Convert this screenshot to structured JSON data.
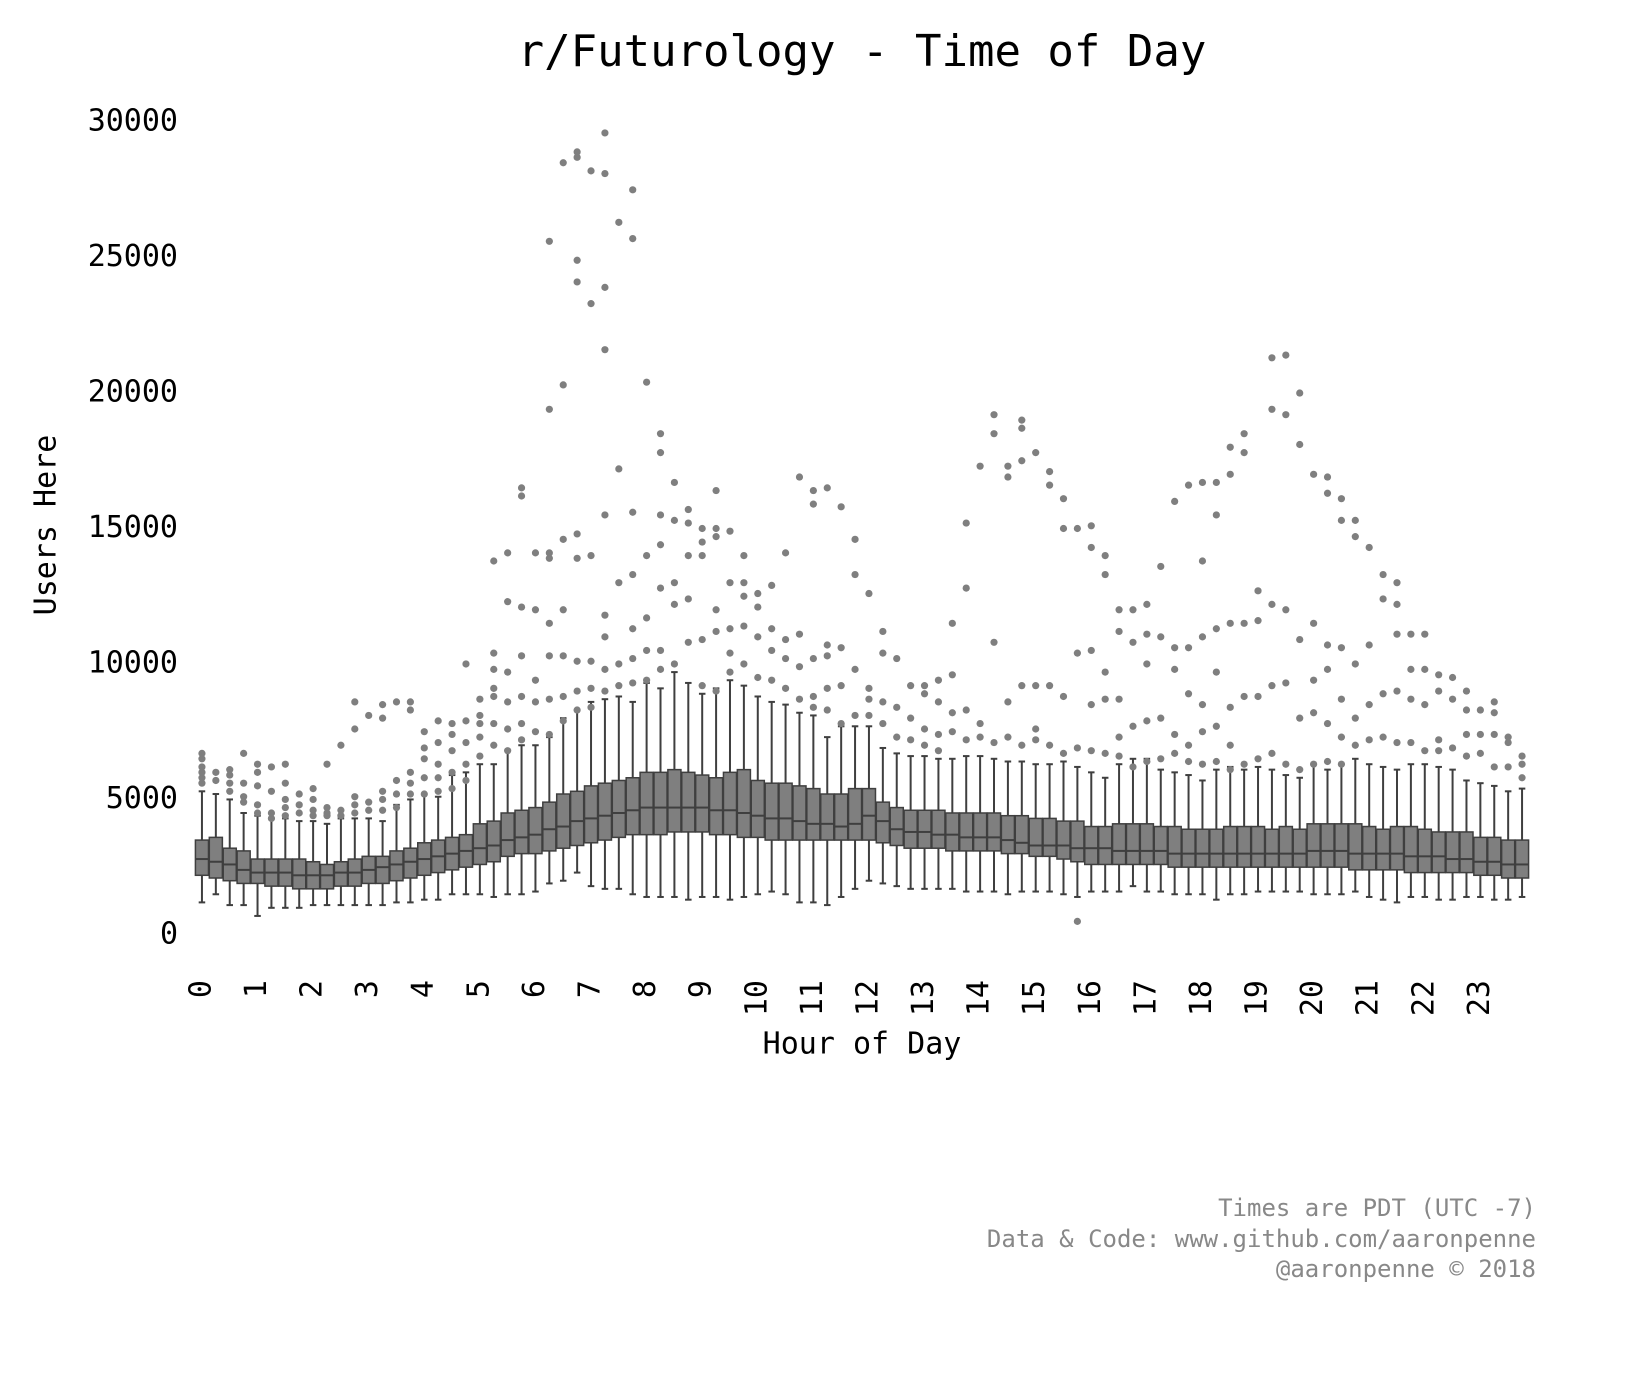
{
  "chart_data": {
    "type": "box",
    "title": "r/Futurology - Time of Day",
    "x_label": "Hour of Day",
    "y_label": "Users Here",
    "footer": [
      "Times are PDT (UTC -7)",
      "Data & Code: www.github.com/aaronpenne",
      "@aaronpenne © 2018"
    ],
    "categories": [
      "0",
      null,
      null,
      null,
      "1",
      null,
      null,
      null,
      "2",
      null,
      null,
      null,
      "3",
      null,
      null,
      null,
      "4",
      null,
      null,
      null,
      "5",
      null,
      null,
      null,
      "6",
      null,
      null,
      null,
      "7",
      null,
      null,
      null,
      "8",
      null,
      null,
      null,
      "9",
      null,
      null,
      null,
      "10",
      null,
      null,
      null,
      "11",
      null,
      null,
      null,
      "12",
      null,
      null,
      null,
      "13",
      null,
      null,
      null,
      "14",
      null,
      null,
      null,
      "15",
      null,
      null,
      null,
      "16",
      null,
      null,
      null,
      "17",
      null,
      null,
      null,
      "18",
      null,
      null,
      null,
      "19",
      null,
      null,
      null,
      "20",
      null,
      null,
      null,
      "21",
      null,
      null,
      null,
      "22",
      null,
      null,
      null,
      "23",
      null,
      null,
      null
    ],
    "whisker_low": [
      1200,
      1500,
      1100,
      1100,
      700,
      1000,
      1000,
      1000,
      1100,
      1100,
      1100,
      1100,
      1100,
      1100,
      1200,
      1200,
      1300,
      1300,
      1500,
      1500,
      1500,
      1400,
      1500,
      1500,
      1600,
      1900,
      2000,
      2300,
      1800,
      1700,
      1700,
      1500,
      1400,
      1400,
      1400,
      1300,
      1400,
      1400,
      1300,
      1400,
      1500,
      1600,
      1500,
      1200,
      1200,
      1100,
      1400,
      1700,
      2000,
      1900,
      1800,
      1700,
      1700,
      1700,
      1700,
      1600,
      1600,
      1600,
      1500,
      1600,
      1600,
      1600,
      1500,
      1400,
      1600,
      1600,
      1600,
      1800,
      1600,
      1600,
      1500,
      1500,
      1500,
      1300,
      1500,
      1500,
      1600,
      1600,
      1600,
      1600,
      1500,
      1500,
      1500,
      1600,
      1400,
      1300,
      1200,
      1400,
      1400,
      1300,
      1300,
      1400,
      1400,
      1300,
      1300,
      1400
    ],
    "q1": [
      2200,
      2100,
      2000,
      1900,
      1900,
      1800,
      1800,
      1700,
      1700,
      1700,
      1800,
      1800,
      1900,
      1900,
      2000,
      2100,
      2200,
      2300,
      2400,
      2500,
      2600,
      2700,
      2900,
      3000,
      3000,
      3100,
      3200,
      3300,
      3400,
      3500,
      3600,
      3700,
      3700,
      3700,
      3800,
      3800,
      3800,
      3700,
      3700,
      3600,
      3600,
      3500,
      3500,
      3500,
      3500,
      3500,
      3500,
      3500,
      3500,
      3400,
      3300,
      3200,
      3200,
      3200,
      3100,
      3100,
      3100,
      3100,
      3000,
      3000,
      2900,
      2900,
      2800,
      2700,
      2600,
      2600,
      2600,
      2600,
      2600,
      2600,
      2500,
      2500,
      2500,
      2500,
      2500,
      2500,
      2500,
      2500,
      2500,
      2500,
      2500,
      2500,
      2500,
      2400,
      2400,
      2400,
      2400,
      2300,
      2300,
      2300,
      2300,
      2300,
      2200,
      2200,
      2100,
      2100
    ],
    "median": [
      2800,
      2700,
      2600,
      2400,
      2300,
      2300,
      2300,
      2200,
      2200,
      2200,
      2300,
      2300,
      2400,
      2500,
      2600,
      2700,
      2800,
      2900,
      3000,
      3100,
      3200,
      3300,
      3500,
      3600,
      3700,
      3900,
      4000,
      4200,
      4300,
      4400,
      4500,
      4600,
      4700,
      4700,
      4700,
      4700,
      4700,
      4600,
      4600,
      4500,
      4400,
      4300,
      4300,
      4200,
      4100,
      4100,
      4000,
      4100,
      4400,
      4200,
      3900,
      3800,
      3800,
      3700,
      3700,
      3600,
      3600,
      3600,
      3500,
      3400,
      3300,
      3300,
      3300,
      3200,
      3200,
      3200,
      3100,
      3100,
      3100,
      3100,
      3000,
      3000,
      3000,
      3000,
      3000,
      3000,
      3000,
      3000,
      3000,
      3000,
      3100,
      3100,
      3100,
      3000,
      3000,
      3000,
      3000,
      2900,
      2900,
      2900,
      2800,
      2800,
      2700,
      2700,
      2600,
      2600
    ],
    "q3": [
      3500,
      3600,
      3200,
      3100,
      2800,
      2800,
      2800,
      2800,
      2700,
      2600,
      2700,
      2800,
      2900,
      2900,
      3100,
      3200,
      3400,
      3500,
      3600,
      3700,
      4100,
      4200,
      4500,
      4600,
      4700,
      4900,
      5200,
      5300,
      5500,
      5600,
      5700,
      5800,
      6000,
      6000,
      6100,
      6000,
      5900,
      5800,
      6000,
      6100,
      5700,
      5600,
      5600,
      5500,
      5400,
      5200,
      5200,
      5400,
      5400,
      4900,
      4700,
      4600,
      4600,
      4600,
      4500,
      4500,
      4500,
      4500,
      4400,
      4400,
      4300,
      4300,
      4200,
      4200,
      4000,
      4000,
      4100,
      4100,
      4100,
      4000,
      4000,
      3900,
      3900,
      3900,
      4000,
      4000,
      4000,
      3900,
      4000,
      3900,
      4100,
      4100,
      4100,
      4100,
      4000,
      3900,
      4000,
      4000,
      3900,
      3800,
      3800,
      3800,
      3600,
      3600,
      3500,
      3500
    ],
    "whisker_high": [
      5300,
      5200,
      5000,
      4500,
      4400,
      4300,
      4300,
      4200,
      4200,
      4100,
      4300,
      4300,
      4300,
      4200,
      4800,
      5000,
      5200,
      5100,
      5900,
      6000,
      6300,
      6300,
      6800,
      7000,
      7000,
      7300,
      8000,
      8300,
      8600,
      8700,
      8800,
      8600,
      9300,
      9100,
      9700,
      9300,
      8900,
      9100,
      9400,
      9200,
      8800,
      8600,
      8500,
      8200,
      8100,
      7300,
      7700,
      7700,
      7700,
      6900,
      6700,
      6600,
      6600,
      6500,
      6500,
      6600,
      6600,
      6500,
      6400,
      6400,
      6300,
      6300,
      6400,
      6200,
      6000,
      5800,
      6300,
      6500,
      6500,
      6100,
      6000,
      5900,
      5700,
      6100,
      6200,
      6100,
      6200,
      6100,
      5900,
      5800,
      6300,
      6100,
      6300,
      6500,
      6300,
      6200,
      6100,
      6300,
      6300,
      6200,
      6100,
      5700,
      5600,
      5500,
      5300,
      5400
    ],
    "outliers": [
      [
        5600,
        5800,
        6000,
        6200,
        6500,
        6700
      ],
      [
        5700,
        6000
      ],
      [
        5300,
        5600,
        5900,
        6100
      ],
      [
        4900,
        5100,
        5600,
        6700
      ],
      [
        4500,
        4800,
        5500,
        6000,
        6300
      ],
      [
        4300,
        4500,
        5300,
        6200
      ],
      [
        4400,
        4700,
        5000,
        5600,
        6300
      ],
      [
        4500,
        4800,
        5200
      ],
      [
        4400,
        4600,
        5000,
        5400
      ],
      [
        4400,
        4500,
        4700,
        6300
      ],
      [
        4400,
        4600,
        7000
      ],
      [
        4500,
        4800,
        5100,
        7600,
        8600
      ],
      [
        4600,
        4900,
        8100
      ],
      [
        4600,
        5000,
        5300,
        8000,
        8500
      ],
      [
        4700,
        5200,
        5700,
        8600
      ],
      [
        5200,
        5600,
        6000,
        8300,
        8600
      ],
      [
        5200,
        5800,
        6500,
        6900,
        7500
      ],
      [
        5300,
        5800,
        6300,
        7100,
        7900
      ],
      [
        5400,
        6000,
        6800,
        7400,
        7800
      ],
      [
        5700,
        6300,
        7100,
        7900,
        10000
      ],
      [
        6600,
        7300,
        7800,
        8100,
        8700
      ],
      [
        7000,
        7800,
        8800,
        9100,
        9800,
        10400,
        13800
      ],
      [
        6800,
        7600,
        8600,
        9700,
        12300,
        14100
      ],
      [
        7200,
        7800,
        8800,
        10300,
        12100,
        16200,
        16500
      ],
      [
        7500,
        8600,
        9400,
        12000,
        14100
      ],
      [
        7400,
        8700,
        10300,
        11500,
        13900,
        14100,
        19400,
        25600
      ],
      [
        7900,
        8800,
        10300,
        12000,
        14600,
        20300,
        28500
      ],
      [
        8300,
        9000,
        10100,
        13900,
        14800,
        24100,
        24900,
        28700,
        28900
      ],
      [
        8400,
        9100,
        10100,
        14000,
        23300,
        28200
      ],
      [
        9000,
        9800,
        11000,
        11800,
        15500,
        21600,
        23900,
        28100,
        29600
      ],
      [
        9200,
        10000,
        13000,
        17200,
        26300
      ],
      [
        9300,
        10200,
        11300,
        13300,
        15600,
        25700,
        27500
      ],
      [
        9400,
        10500,
        11700,
        14000,
        20400
      ],
      [
        9800,
        10500,
        12800,
        14400,
        15500,
        17800,
        18500
      ],
      [
        10000,
        12200,
        13000,
        15300,
        16700
      ],
      [
        10800,
        12400,
        14000,
        15200,
        15700
      ],
      [
        9200,
        10900,
        14000,
        14500,
        15000
      ],
      [
        9000,
        11200,
        12000,
        14700,
        15000,
        16400
      ],
      [
        9700,
        10400,
        11300,
        13000,
        14900
      ],
      [
        10000,
        11400,
        12500,
        13000,
        14000
      ],
      [
        9500,
        11000,
        12100,
        12600
      ],
      [
        9400,
        10500,
        11300,
        12900
      ],
      [
        9100,
        10200,
        10900,
        14100
      ],
      [
        8700,
        9900,
        11100,
        16900
      ],
      [
        8400,
        8800,
        10200,
        15900,
        16400
      ],
      [
        8300,
        9100,
        10300,
        10700,
        16500
      ],
      [
        7800,
        9200,
        10600,
        15800
      ],
      [
        8100,
        9800,
        13300,
        14600
      ],
      [
        8100,
        8700,
        9100,
        12600
      ],
      [
        7800,
        8600,
        10400,
        11200
      ],
      [
        7300,
        8400,
        10200
      ],
      [
        7200,
        8000,
        9200
      ],
      [
        7000,
        7600,
        8900,
        9200
      ],
      [
        6800,
        7400,
        8600,
        9400
      ],
      [
        7500,
        8200,
        9600,
        11500
      ],
      [
        7200,
        8300,
        12800,
        15200
      ],
      [
        7300,
        7800,
        17300
      ],
      [
        7100,
        10800,
        18500,
        19200
      ],
      [
        7300,
        8600,
        16900,
        17300
      ],
      [
        7000,
        9200,
        17500,
        18700,
        19000
      ],
      [
        7200,
        7600,
        9200,
        17800
      ],
      [
        7000,
        9200,
        16600,
        17100
      ],
      [
        6700,
        8800,
        15000,
        16100
      ],
      [
        500,
        6900,
        10400,
        15000
      ],
      [
        6800,
        8500,
        10500,
        14300,
        15100
      ],
      [
        6700,
        8700,
        9700,
        13300,
        14000
      ],
      [
        6600,
        7300,
        8700,
        11200,
        12000
      ],
      [
        6200,
        7700,
        10800,
        12000
      ],
      [
        6400,
        7900,
        10000,
        11100,
        12200
      ],
      [
        6500,
        8000,
        11000,
        13600
      ],
      [
        6700,
        7400,
        9800,
        10600,
        16000
      ],
      [
        6400,
        7000,
        8900,
        10600,
        16600
      ],
      [
        6300,
        7500,
        8500,
        11000,
        13800,
        16700
      ],
      [
        6400,
        7700,
        9700,
        11300,
        15500,
        16700
      ],
      [
        6100,
        7000,
        8400,
        11500,
        17000,
        18000
      ],
      [
        6300,
        8800,
        11500,
        17800,
        18500
      ],
      [
        6500,
        8800,
        11600,
        12700
      ],
      [
        6700,
        9200,
        12200,
        19400,
        21300
      ],
      [
        6300,
        9300,
        12000,
        19200,
        21400
      ],
      [
        6100,
        8000,
        10900,
        18100,
        20000
      ],
      [
        6300,
        8200,
        9400,
        11500,
        17000
      ],
      [
        6400,
        7800,
        9800,
        10700,
        16300,
        16900
      ],
      [
        6300,
        7300,
        8700,
        10600,
        15300,
        16100
      ],
      [
        7000,
        8000,
        10000,
        14700,
        15300
      ],
      [
        7200,
        8500,
        10700,
        14300
      ],
      [
        7300,
        8900,
        12400,
        13300
      ],
      [
        7100,
        9000,
        11100,
        12200,
        13000
      ],
      [
        7100,
        8700,
        9800,
        11100
      ],
      [
        6800,
        8500,
        9800,
        11100
      ],
      [
        6800,
        7200,
        9000,
        9600
      ],
      [
        6900,
        8700,
        9500
      ],
      [
        6600,
        7400,
        8300,
        9000
      ],
      [
        6700,
        7400,
        8300
      ],
      [
        6200,
        7400,
        8200,
        8600
      ],
      [
        6200,
        7100,
        7300
      ],
      [
        5800,
        6300,
        6600
      ]
    ],
    "color": "#7f7f7f",
    "edge_color": "#3f3f3f",
    "ylim": [
      -1000,
      31000
    ],
    "yticks": [
      0,
      5000,
      10000,
      15000,
      20000,
      25000,
      30000
    ],
    "grid": false
  }
}
